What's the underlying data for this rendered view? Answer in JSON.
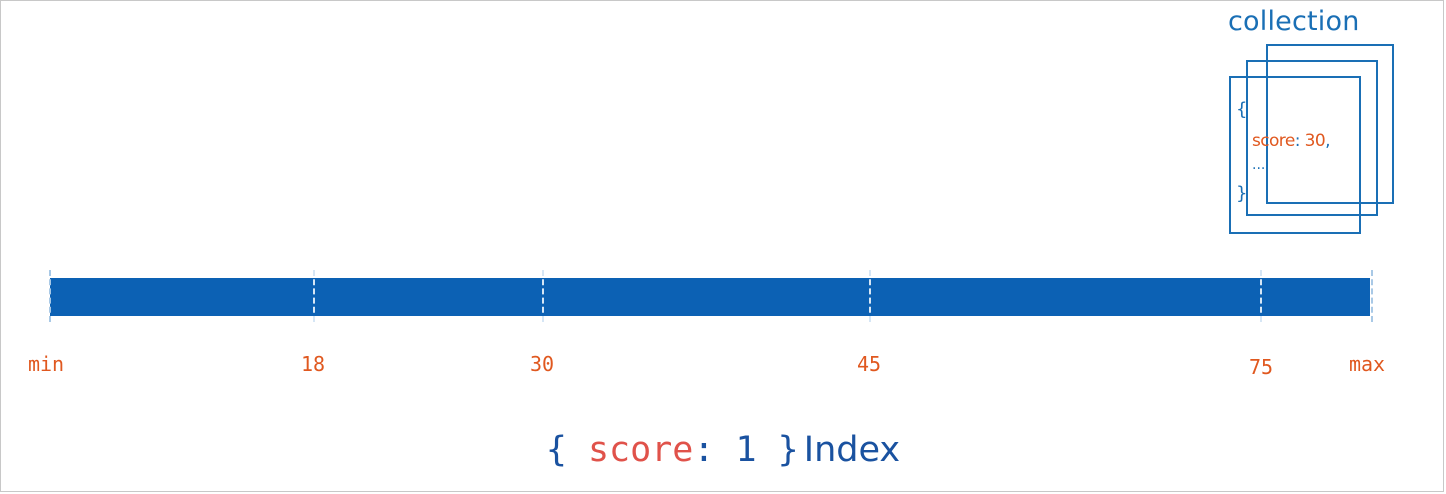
{
  "collection": {
    "title": "collection",
    "document": {
      "open_brace": "{",
      "field_key": "score",
      "colon": ":",
      "field_value": "30",
      "comma": ",",
      "ellipsis": "...",
      "close_brace": "}"
    }
  },
  "index_axis": {
    "labels": {
      "min": "min",
      "t18": "18",
      "t30": "30",
      "t45": "45",
      "t75": "75",
      "max": "max"
    }
  },
  "index_caption": {
    "open": "{ ",
    "key": "score",
    "rest": ": 1 }",
    "word": "Index"
  },
  "colors": {
    "bar": "#0c61b4",
    "accent_orange": "#e0581f",
    "collection_blue": "#1a6fb5"
  }
}
